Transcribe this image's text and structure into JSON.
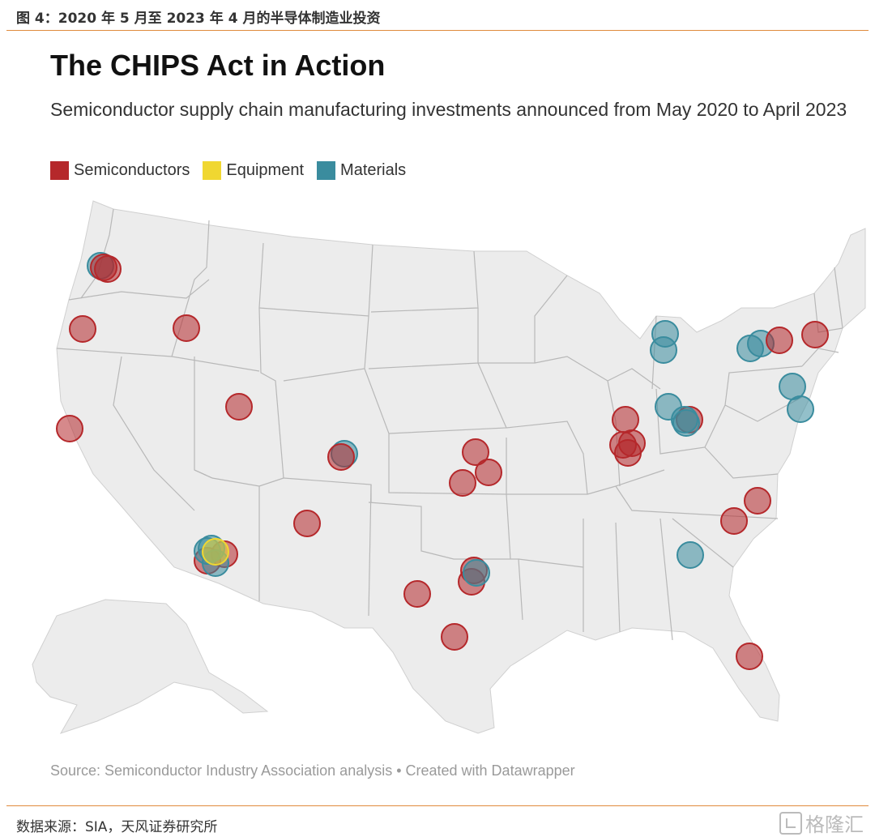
{
  "figure_caption": "图 4：2020 年 5 月至 2023 年 4 月的半导体制造业投资",
  "title": "The CHIPS Act in Action",
  "subtitle": "Semiconductor supply chain manufacturing investments announced from May 2020 to April 2023",
  "legend": [
    {
      "label": "Semiconductors",
      "color": "#b5282b"
    },
    {
      "label": "Equipment",
      "color": "#f0d731"
    },
    {
      "label": "Materials",
      "color": "#3a8c9e"
    }
  ],
  "source": "Source: Semiconductor Industry Association analysis • Created with Datawrapper",
  "source_note": "数据来源：SIA，天风证券研究所",
  "watermark": "格隆汇",
  "map": {
    "region": "United States",
    "fill_color": "#ececec",
    "border_color": "#b8b8b8",
    "points": [
      {
        "location": "Oregon, Portland area",
        "category": "Materials"
      },
      {
        "location": "Oregon, Portland area",
        "category": "Semiconductors"
      },
      {
        "location": "Oregon, Portland area",
        "category": "Semiconductors"
      },
      {
        "location": "Northern California",
        "category": "Semiconductors"
      },
      {
        "location": "Idaho, Boise",
        "category": "Semiconductors"
      },
      {
        "location": "California, Bay Area",
        "category": "Semiconductors"
      },
      {
        "location": "Utah",
        "category": "Semiconductors"
      },
      {
        "location": "Colorado",
        "category": "Materials"
      },
      {
        "location": "Colorado",
        "category": "Semiconductors"
      },
      {
        "location": "New Mexico",
        "category": "Semiconductors"
      },
      {
        "location": "Arizona, Phoenix",
        "category": "Semiconductors"
      },
      {
        "location": "Arizona, Phoenix",
        "category": "Semiconductors"
      },
      {
        "location": "Arizona, Phoenix",
        "category": "Materials"
      },
      {
        "location": "Arizona, Phoenix",
        "category": "Materials"
      },
      {
        "location": "Arizona, Phoenix",
        "category": "Materials"
      },
      {
        "location": "Arizona, Phoenix",
        "category": "Equipment"
      },
      {
        "location": "Texas, Lubbock",
        "category": "Semiconductors"
      },
      {
        "location": "Texas, Austin",
        "category": "Semiconductors"
      },
      {
        "location": "Texas, Dallas",
        "category": "Semiconductors"
      },
      {
        "location": "Texas, Dallas",
        "category": "Semiconductors"
      },
      {
        "location": "Texas, Dallas",
        "category": "Materials"
      },
      {
        "location": "Kansas",
        "category": "Semiconductors"
      },
      {
        "location": "Kansas",
        "category": "Semiconductors"
      },
      {
        "location": "Kansas",
        "category": "Semiconductors"
      },
      {
        "location": "Indiana",
        "category": "Semiconductors"
      },
      {
        "location": "Indiana",
        "category": "Semiconductors"
      },
      {
        "location": "Indiana",
        "category": "Semiconductors"
      },
      {
        "location": "Indiana",
        "category": "Semiconductors"
      },
      {
        "location": "Michigan",
        "category": "Materials"
      },
      {
        "location": "Michigan",
        "category": "Materials"
      },
      {
        "location": "Ohio",
        "category": "Materials"
      },
      {
        "location": "Ohio",
        "category": "Semiconductors"
      },
      {
        "location": "Ohio",
        "category": "Materials"
      },
      {
        "location": "Ohio",
        "category": "Materials"
      },
      {
        "location": "New York, Western",
        "category": "Materials"
      },
      {
        "location": "New York, Western",
        "category": "Materials"
      },
      {
        "location": "New York, Central",
        "category": "Semiconductors"
      },
      {
        "location": "New York, Eastern",
        "category": "Semiconductors"
      },
      {
        "location": "Pennsylvania",
        "category": "Materials"
      },
      {
        "location": "Delaware",
        "category": "Materials"
      },
      {
        "location": "North Carolina",
        "category": "Semiconductors"
      },
      {
        "location": "North Carolina",
        "category": "Semiconductors"
      },
      {
        "location": "Georgia",
        "category": "Materials"
      },
      {
        "location": "Florida",
        "category": "Semiconductors"
      }
    ]
  }
}
